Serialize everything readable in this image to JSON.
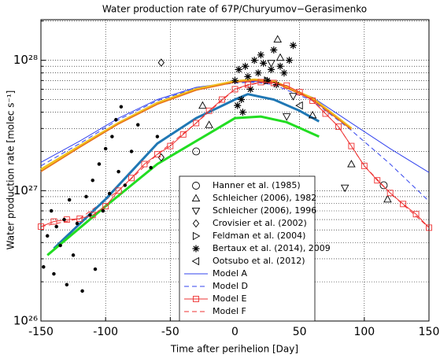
{
  "chart_data": {
    "type": "line",
    "title": "Water production rate of 67P/Churyumov−Gerasimenko",
    "xlabel": "Time after perihelion [Day]",
    "ylabel": "Water production rate [molec s⁻¹]",
    "xlim": [
      -150,
      150
    ],
    "xticks": [
      -150,
      -100,
      -50,
      0,
      50,
      100,
      150
    ],
    "ylim": [
      1e+26,
      2.05e+28
    ],
    "log_y": true,
    "grid": true,
    "yticks": [
      {
        "value": 1e+26,
        "label": "10²⁶"
      },
      {
        "value": 1e+27,
        "label": "10²⁷"
      },
      {
        "value": 1e+28,
        "label": "10²⁸"
      }
    ],
    "yminorticks": [
      2e+26,
      3e+26,
      4e+26,
      5e+26,
      6e+26,
      7e+26,
      8e+26,
      9e+26,
      2e+27,
      3e+27,
      4e+27,
      5e+27,
      6e+27,
      7e+27,
      8e+27,
      9e+27,
      2e+28
    ],
    "series": [
      {
        "name": "Hanner et al. (1985)",
        "color": "#000000",
        "marker": "o",
        "x": [
          -30,
          115
        ],
        "values": [
          2e+27,
          1.1e+27
        ]
      },
      {
        "name": "Schleicher (2006), 1982",
        "color": "#000000",
        "marker": "^",
        "x": [
          -25,
          -20,
          33,
          35,
          60,
          90,
          118
        ],
        "values": [
          4.5e+27,
          3.2e+27,
          1.45e+28,
          1.05e+28,
          3.8e+27,
          1.6e+27,
          8.6e+26
        ]
      },
      {
        "name": "Schleicher (2006), 1996",
        "color": "#000000",
        "marker": "v",
        "x": [
          28,
          40,
          45,
          85
        ],
        "values": [
          9.5e+27,
          3.7e+27,
          5.3e+27,
          1.05e+27
        ]
      },
      {
        "name": "Crovisier et al. (2002)",
        "color": "#000000",
        "marker": "D",
        "x": [
          -57,
          -57
        ],
        "values": [
          9.6e+27,
          1.8e+27
        ]
      },
      {
        "name": "Feldman et al. (2004)",
        "color": "#000000",
        "marker": ">",
        "x": [
          25
        ],
        "values": [
          7e+27
        ]
      },
      {
        "name": "Bertaux et al. (2014), 2009",
        "color": "#000000",
        "marker": "*",
        "x": [
          0,
          2,
          3,
          5,
          6,
          8,
          10,
          12,
          15,
          18,
          20,
          22,
          25,
          28,
          30,
          32,
          35,
          38,
          42,
          45
        ],
        "values": [
          7e+27,
          4.5e+27,
          8.5e+27,
          5e+27,
          4e+27,
          9e+27,
          7.5e+27,
          6e+27,
          1e+28,
          8e+27,
          1.1e+28,
          9.5e+27,
          7e+27,
          8.5e+27,
          1.2e+28,
          6.5e+27,
          9e+27,
          8e+27,
          1e+28,
          1.3e+28
        ]
      },
      {
        "name": "Ootsubo et al. (2012)",
        "color": "#000000",
        "marker": "<",
        "x": [
          50
        ],
        "values": [
          4.5e+27
        ]
      },
      {
        "name": "Model A",
        "color": "#3344ee",
        "linestyle": "solid",
        "x": [
          -150,
          -120,
          -90,
          -60,
          -30,
          0,
          15,
          30,
          60,
          90,
          120,
          150
        ],
        "values": [
          1.65e+27,
          2.4e+27,
          3.6e+27,
          5e+27,
          6.2e+27,
          6.8e+27,
          6.9e+27,
          6.7e+27,
          5.2e+27,
          3.3e+27,
          2.1e+27,
          1.38e+27
        ]
      },
      {
        "name": "Model D",
        "color": "#3344ee",
        "linestyle": "dashed",
        "x": [
          -150,
          -120,
          -90,
          -60,
          -30,
          0,
          15,
          30,
          60,
          90,
          120,
          150
        ],
        "values": [
          1.55e+27,
          2.3e+27,
          3.5e+27,
          4.9e+27,
          6.1e+27,
          6.7e+27,
          6.8e+27,
          6.5e+27,
          4.9e+27,
          2.9e+27,
          1.6e+27,
          8.3e+26
        ]
      },
      {
        "name": "Model E",
        "color": "#ee3333",
        "marker": "s",
        "linestyle": "solid",
        "x": [
          -150,
          -140,
          -130,
          -120,
          -110,
          -100,
          -90,
          -80,
          -70,
          -60,
          -50,
          -40,
          -30,
          -20,
          -10,
          0,
          10,
          20,
          30,
          40,
          50,
          60,
          70,
          80,
          90,
          100,
          110,
          120,
          130,
          140,
          150
        ],
        "values": [
          5.3e+26,
          5.8e+26,
          6e+26,
          6.1e+26,
          6.5e+26,
          7.6e+26,
          1e+27,
          1.25e+27,
          1.6e+27,
          1.9e+27,
          2.2e+27,
          2.7e+27,
          3.3e+27,
          4.1e+27,
          5e+27,
          6e+27,
          6.5e+27,
          6.8e+27,
          6.7e+27,
          6.4e+27,
          5.7e+27,
          4.9e+27,
          3.9e+27,
          3.1e+27,
          2.2e+27,
          1.55e+27,
          1.2e+27,
          9.6e+26,
          7.9e+26,
          6.6e+26,
          5.2e+26
        ]
      },
      {
        "name": "Model F",
        "color": "#ee3333",
        "linestyle": "dashed",
        "x": [
          -150,
          -120,
          -90,
          -60,
          -30,
          0,
          20,
          40,
          60,
          80,
          100,
          120,
          150
        ],
        "values": [
          5.3e+26,
          6.1e+26,
          1e+27,
          1.9e+27,
          3.3e+27,
          6e+27,
          6.8e+27,
          6.4e+27,
          4.9e+27,
          3.1e+27,
          1.55e+27,
          9.6e+26,
          5.2e+26
        ]
      },
      {
        "color": "#000000",
        "marker": ".",
        "x": [
          -148,
          -145,
          -142,
          -140,
          -138,
          -135,
          -132,
          -130,
          -128,
          -125,
          -122,
          -118,
          -115,
          -112,
          -110,
          -108,
          -105,
          -102,
          -100,
          -97,
          -95,
          -92,
          -90,
          -88,
          -85,
          -80,
          -75,
          -65,
          -60
        ],
        "values": [
          2.6e+26,
          4.5e+26,
          7e+26,
          2.3e+26,
          5.3e+26,
          3.8e+26,
          6e+26,
          1.9e+26,
          8.5e+26,
          3.2e+26,
          5.6e+26,
          1.7e+26,
          9e+26,
          6.5e+26,
          1.2e+27,
          2.5e+26,
          1.6e+27,
          7e+26,
          2.1e+27,
          9.5e+26,
          2.6e+27,
          3.5e+27,
          1.4e+27,
          4.4e+27,
          1.1e+27,
          2e+27,
          3.2e+27,
          1.5e+27,
          2.6e+27
        ]
      },
      {
        "color": "#f0c020",
        "linestyle": "solid",
        "linewidth": 3,
        "x": [
          -150,
          -120,
          -90,
          -60,
          -30,
          0,
          15,
          30,
          60,
          90
        ],
        "values": [
          1.45e+27,
          2.2e+27,
          3.3e+27,
          4.7e+27,
          6e+27,
          6.9e+27,
          7.1e+27,
          6.9e+27,
          5.1e+27,
          3e+27
        ]
      },
      {
        "color": "#e8701a",
        "linestyle": "solid",
        "linewidth": 1.5,
        "x": [
          -150,
          -120,
          -90,
          -60,
          -30,
          0,
          15,
          30,
          60,
          90
        ],
        "values": [
          1.4e+27,
          2.15e+27,
          3.25e+27,
          4.6e+27,
          5.9e+27,
          6.8e+27,
          7e+27,
          6.8e+27,
          5e+27,
          2.95e+27
        ]
      },
      {
        "color": "#1f77b4",
        "linestyle": "solid",
        "linewidth": 3,
        "x": [
          -140,
          -100,
          -60,
          -30,
          0,
          10,
          30,
          50,
          65
        ],
        "values": [
          3.6e+26,
          8.6e+26,
          2.3e+27,
          3.6e+27,
          5e+27,
          5.5e+27,
          5e+27,
          4.1e+27,
          3.4e+27
        ]
      },
      {
        "color": "#22dd22",
        "linestyle": "solid",
        "linewidth": 3,
        "x": [
          -145,
          -100,
          -60,
          -30,
          0,
          20,
          40,
          65
        ],
        "values": [
          3.2e+26,
          7.6e+26,
          1.6e+27,
          2.4e+27,
          3.6e+27,
          3.7e+27,
          3.35e+27,
          2.6e+27
        ]
      }
    ]
  }
}
